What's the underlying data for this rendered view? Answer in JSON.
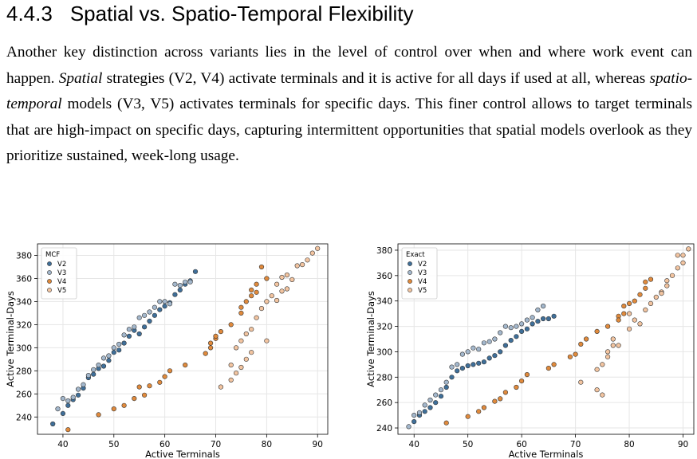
{
  "section": {
    "number": "4.4.3",
    "title": "Spatial vs. Spatio-Temporal Flexibility"
  },
  "paragraph": {
    "part1": "Another key distinction across variants lies in the level of control over when and where work event can happen. ",
    "spatial_term": "Spatial",
    "part2": " strategies (V2, V4) activate terminals and it is active for all days if used at all, whereas ",
    "spatiotemporal_term": "spatio-temporal",
    "part3": " models (V3, V5) activates terminals for specific days. This finer control allows to target terminals that are high-impact on specific days, capturing intermittent opportunities that spatial models overlook as they prioritize sustained, week-long usage."
  },
  "chart_data": [
    {
      "type": "scatter",
      "xlabel": "Active Terminals",
      "ylabel": "Active Terminal-Days",
      "xlim": [
        35,
        92
      ],
      "ylim": [
        225,
        390
      ],
      "xticks": [
        40,
        50,
        60,
        70,
        80,
        90
      ],
      "yticks": [
        240,
        260,
        280,
        300,
        320,
        340,
        360,
        380
      ],
      "grid": true,
      "legend": {
        "title": "MCF",
        "position": "top-left"
      },
      "series": [
        {
          "name": "V2",
          "color": "#3f6f99",
          "points": [
            [
              38,
              234
            ],
            [
              40,
              243
            ],
            [
              41,
              250
            ],
            [
              42,
              255
            ],
            [
              43,
              259
            ],
            [
              44,
              265
            ],
            [
              45,
              274
            ],
            [
              46,
              277
            ],
            [
              47,
              282
            ],
            [
              48,
              284
            ],
            [
              49,
              289
            ],
            [
              50,
              296
            ],
            [
              51,
              298
            ],
            [
              52,
              304
            ],
            [
              53,
              310
            ],
            [
              54,
              315
            ],
            [
              55,
              312
            ],
            [
              56,
              318
            ],
            [
              57,
              323
            ],
            [
              58,
              328
            ],
            [
              59,
              333
            ],
            [
              60,
              336
            ],
            [
              61,
              339
            ],
            [
              62,
              346
            ],
            [
              63,
              350
            ],
            [
              64,
              355
            ],
            [
              65,
              358
            ],
            [
              66,
              366
            ]
          ]
        },
        {
          "name": "V3",
          "color": "#a3b7cc",
          "points": [
            [
              39,
              247
            ],
            [
              40,
              256
            ],
            [
              41,
              254
            ],
            [
              42,
              257
            ],
            [
              43,
              264
            ],
            [
              44,
              268
            ],
            [
              45,
              276
            ],
            [
              46,
              281
            ],
            [
              47,
              285
            ],
            [
              48,
              291
            ],
            [
              49,
              293
            ],
            [
              50,
              300
            ],
            [
              51,
              303
            ],
            [
              52,
              311
            ],
            [
              53,
              316
            ],
            [
              54,
              318
            ],
            [
              55,
              326
            ],
            [
              56,
              328
            ],
            [
              57,
              331
            ],
            [
              58,
              335
            ],
            [
              59,
              340
            ],
            [
              60,
              340
            ],
            [
              61,
              338
            ],
            [
              62,
              355
            ],
            [
              63,
              354
            ],
            [
              64,
              357
            ],
            [
              65,
              357
            ]
          ]
        },
        {
          "name": "V4",
          "color": "#e08a3c",
          "points": [
            [
              41,
              229
            ],
            [
              47,
              242
            ],
            [
              50,
              247
            ],
            [
              52,
              250
            ],
            [
              54,
              256
            ],
            [
              55,
              266
            ],
            [
              56,
              259
            ],
            [
              57,
              267
            ],
            [
              59,
              270
            ],
            [
              60,
              275
            ],
            [
              61,
              280
            ],
            [
              64,
              285
            ],
            [
              68,
              295
            ],
            [
              69,
              300
            ],
            [
              69,
              304
            ],
            [
              70,
              308
            ],
            [
              70,
              310
            ],
            [
              71,
              314
            ],
            [
              73,
              320
            ],
            [
              75,
              330
            ],
            [
              75,
              335
            ],
            [
              76,
              340
            ],
            [
              77,
              345
            ],
            [
              77,
              350
            ],
            [
              78,
              348
            ],
            [
              78,
              355
            ],
            [
              80,
              360
            ],
            [
              79,
              370
            ]
          ]
        },
        {
          "name": "V5",
          "color": "#f2c4a0",
          "points": [
            [
              71,
              266
            ],
            [
              73,
              272
            ],
            [
              74,
              278
            ],
            [
              75,
              283
            ],
            [
              76,
              290
            ],
            [
              77,
              296
            ],
            [
              73,
              285
            ],
            [
              74,
              300
            ],
            [
              75,
              306
            ],
            [
              76,
              312
            ],
            [
              77,
              316
            ],
            [
              78,
              326
            ],
            [
              79,
              334
            ],
            [
              80,
              340
            ],
            [
              81,
              345
            ],
            [
              82,
              355
            ],
            [
              83,
              361
            ],
            [
              84,
              363
            ],
            [
              85,
              359
            ],
            [
              86,
              371
            ],
            [
              87,
              372
            ],
            [
              88,
              376
            ],
            [
              89,
              382
            ],
            [
              90,
              386
            ],
            [
              82,
              341
            ],
            [
              83,
              349
            ],
            [
              84,
              351
            ],
            [
              80,
              306
            ]
          ]
        }
      ]
    },
    {
      "type": "scatter",
      "xlabel": "Active Terminals",
      "ylabel": "Active Terminal-Days",
      "xlim": [
        37,
        92
      ],
      "ylim": [
        235,
        385
      ],
      "xticks": [
        40,
        50,
        60,
        70,
        80,
        90
      ],
      "yticks": [
        240,
        260,
        280,
        300,
        320,
        340,
        360,
        380
      ],
      "grid": true,
      "legend": {
        "title": "Exact",
        "position": "top-left"
      },
      "series": [
        {
          "name": "V2",
          "color": "#3f6f99",
          "points": [
            [
              40,
              245
            ],
            [
              41,
              250
            ],
            [
              42,
              253
            ],
            [
              43,
              256
            ],
            [
              44,
              260
            ],
            [
              45,
              265
            ],
            [
              46,
              272
            ],
            [
              47,
              280
            ],
            [
              48,
              285
            ],
            [
              49,
              287
            ],
            [
              50,
              289
            ],
            [
              51,
              290
            ],
            [
              52,
              291
            ],
            [
              53,
              292
            ],
            [
              54,
              295
            ],
            [
              55,
              297
            ],
            [
              56,
              300
            ],
            [
              57,
              305
            ],
            [
              58,
              309
            ],
            [
              59,
              312
            ],
            [
              60,
              316
            ],
            [
              61,
              318
            ],
            [
              62,
              322
            ],
            [
              63,
              324
            ],
            [
              64,
              326
            ],
            [
              65,
              326
            ],
            [
              66,
              328
            ]
          ]
        },
        {
          "name": "V3",
          "color": "#a3b7cc",
          "points": [
            [
              39,
              241
            ],
            [
              40,
              250
            ],
            [
              41,
              252
            ],
            [
              42,
              258
            ],
            [
              43,
              262
            ],
            [
              44,
              266
            ],
            [
              45,
              270
            ],
            [
              46,
              276
            ],
            [
              47,
              288
            ],
            [
              48,
              290
            ],
            [
              49,
              298
            ],
            [
              50,
              300
            ],
            [
              51,
              303
            ],
            [
              52,
              302
            ],
            [
              53,
              307
            ],
            [
              54,
              308
            ],
            [
              55,
              310
            ],
            [
              56,
              315
            ],
            [
              57,
              320
            ],
            [
              58,
              319
            ],
            [
              59,
              320
            ],
            [
              60,
              322
            ],
            [
              61,
              325
            ],
            [
              62,
              327
            ],
            [
              63,
              333
            ],
            [
              64,
              336
            ]
          ]
        },
        {
          "name": "V4",
          "color": "#e08a3c",
          "points": [
            [
              46,
              244
            ],
            [
              50,
              249
            ],
            [
              52,
              253
            ],
            [
              53,
              256
            ],
            [
              55,
              261
            ],
            [
              56,
              263
            ],
            [
              57,
              268
            ],
            [
              59,
              272
            ],
            [
              60,
              277
            ],
            [
              61,
              282
            ],
            [
              65,
              287
            ],
            [
              66,
              290
            ],
            [
              69,
              296
            ],
            [
              70,
              298
            ],
            [
              71,
              306
            ],
            [
              72,
              310
            ],
            [
              74,
              316
            ],
            [
              76,
              320
            ],
            [
              78,
              328
            ],
            [
              79,
              336
            ],
            [
              80,
              338
            ],
            [
              81,
              340
            ],
            [
              82,
              345
            ],
            [
              83,
              350
            ],
            [
              84,
              357
            ],
            [
              78,
              325
            ],
            [
              83,
              355
            ],
            [
              79,
              330
            ]
          ]
        },
        {
          "name": "V5",
          "color": "#f2c4a0",
          "points": [
            [
              71,
              276
            ],
            [
              74,
              270
            ],
            [
              75,
              266
            ],
            [
              74,
              286
            ],
            [
              75,
              290
            ],
            [
              76,
              300
            ],
            [
              77,
              305
            ],
            [
              77,
              310
            ],
            [
              80,
              318
            ],
            [
              81,
              325
            ],
            [
              82,
              322
            ],
            [
              83,
              333
            ],
            [
              84,
              338
            ],
            [
              85,
              343
            ],
            [
              86,
              347
            ],
            [
              87,
              352
            ],
            [
              87,
              356
            ],
            [
              88,
              360
            ],
            [
              89,
              366
            ],
            [
              90,
              370
            ],
            [
              90,
              376
            ],
            [
              91,
              381
            ],
            [
              89,
              376
            ],
            [
              86,
              346
            ],
            [
              80,
              330
            ],
            [
              78,
              305
            ],
            [
              76,
              296
            ]
          ]
        }
      ]
    }
  ]
}
